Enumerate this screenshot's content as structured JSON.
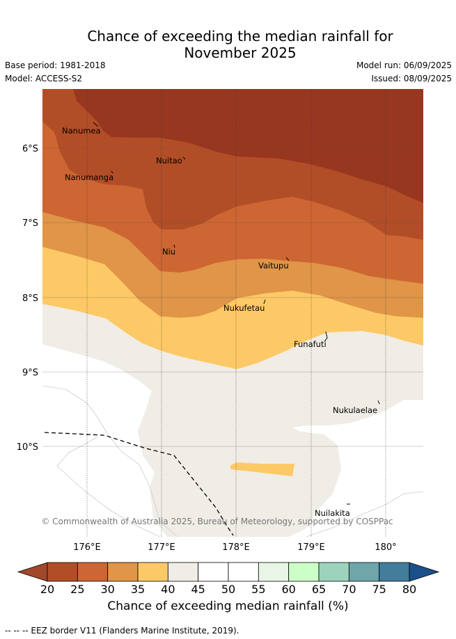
{
  "header": {
    "title_line1": "Chance of exceeding the median rainfall for",
    "title_line2": "November 2025",
    "base_period": "Base period: 1981-2018",
    "model": "Model: ACCESS-S2",
    "model_run": "Model run: 06/09/2025",
    "issued": "Issued: 08/09/2025"
  },
  "map": {
    "lat_labels": [
      "6°S",
      "7°S",
      "8°S",
      "9°S",
      "10°S"
    ],
    "lon_labels": [
      "176°E",
      "177°E",
      "178°E",
      "179°E",
      "180°"
    ],
    "places": [
      "Nanumea",
      "Nuitao",
      "Nanumanga",
      "Niu",
      "Vaitupu",
      "Nukufetau",
      "Funafuti",
      "Nukulaelae",
      "Nuilakita"
    ],
    "copyright": "© Commonwealth of Australia 2025, Bureau of Meteorology, supported by COSPPac"
  },
  "colorbar": {
    "ticks": [
      "20",
      "25",
      "30",
      "35",
      "40",
      "45",
      "50",
      "55",
      "60",
      "65",
      "70",
      "75",
      "80"
    ],
    "colors": [
      "#b24e27",
      "#cd6633",
      "#e09548",
      "#fdc966",
      "#f0ece6",
      "#ffffff",
      "#ffffff",
      "#e9f5e7",
      "#ccfec8",
      "#9dd3bd",
      "#6ea6a9",
      "#427d9c"
    ],
    "under_color": "#a1472a",
    "over_color": "#1a5089",
    "label": "Chance of exceeding median rainfall (%)"
  },
  "footer": {
    "eez_note": "--  --  -- EEZ border V11 (Flanders Marine Institute, 2019)."
  }
}
